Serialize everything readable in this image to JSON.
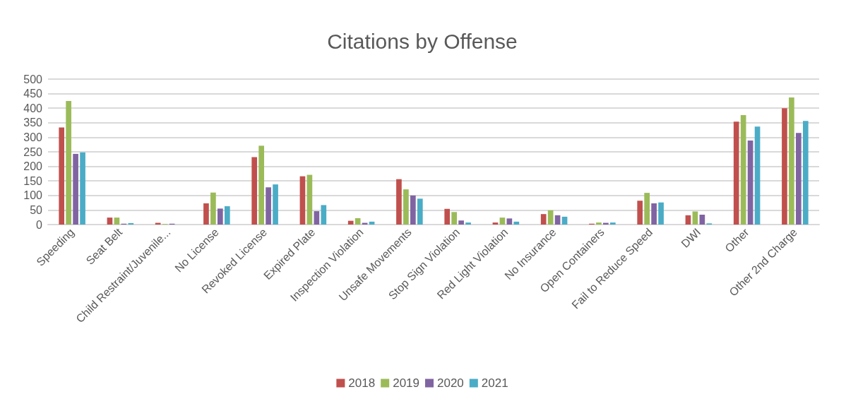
{
  "chart_data": {
    "type": "bar",
    "title": "Citations by Offense",
    "categories": [
      "Speeding",
      "Seat Belt",
      "Child Restraint/Juvenile...",
      "No License",
      "Revoked License",
      "Expired Plate",
      "Inspection Violation",
      "Unsafe Movements",
      "Stop Sign Violation",
      "Red Light Violation",
      "No Insurance",
      "Open Containers",
      "Fail to Reduce Speed",
      "DWI",
      "Other",
      "Other 2nd Charge"
    ],
    "series": [
      {
        "name": "2018",
        "color": "#c0504d",
        "values": [
          334,
          24,
          6,
          73,
          232,
          166,
          13,
          156,
          54,
          7,
          36,
          3,
          82,
          32,
          354,
          400
        ]
      },
      {
        "name": "2019",
        "color": "#9bbb59",
        "values": [
          425,
          24,
          2,
          110,
          271,
          171,
          22,
          121,
          43,
          24,
          49,
          7,
          109,
          45,
          376,
          437
        ]
      },
      {
        "name": "2020",
        "color": "#8064a2",
        "values": [
          243,
          3,
          3,
          55,
          128,
          46,
          6,
          100,
          14,
          21,
          32,
          6,
          73,
          34,
          289,
          315
        ]
      },
      {
        "name": "2021",
        "color": "#4bacc6",
        "values": [
          248,
          5,
          0,
          63,
          138,
          67,
          10,
          89,
          7,
          10,
          27,
          7,
          76,
          4,
          337,
          356
        ]
      }
    ],
    "ylim": [
      0,
      500
    ],
    "yticks": [
      0,
      50,
      100,
      150,
      200,
      250,
      300,
      350,
      400,
      450,
      500
    ],
    "grid": "y",
    "legend": "bottom"
  }
}
